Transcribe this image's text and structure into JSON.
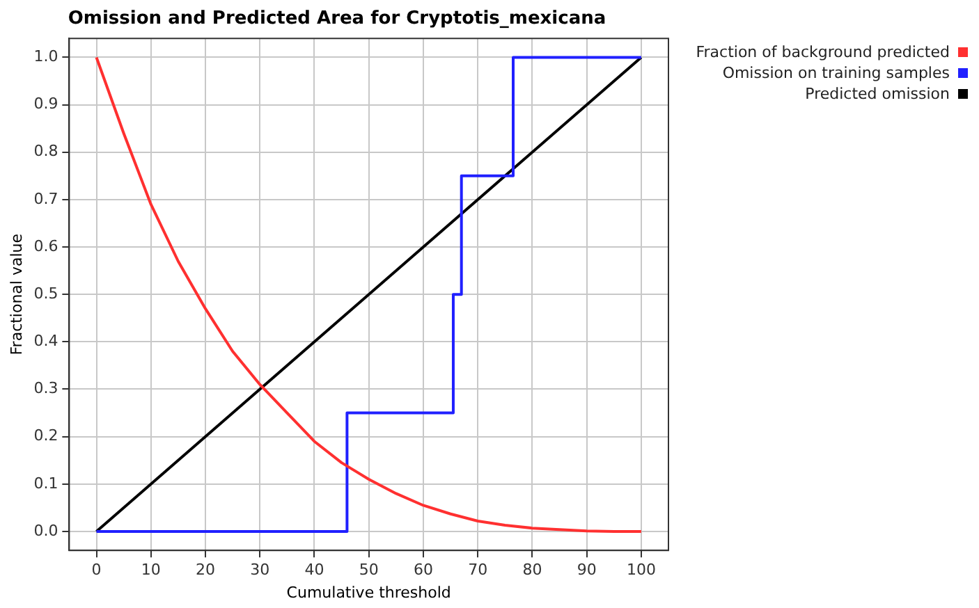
{
  "chart_data": {
    "type": "line",
    "title": "Omission and Predicted Area for Cryptotis_mexicana",
    "xlabel": "Cumulative threshold",
    "ylabel": "Fractional value",
    "xlim": [
      -5,
      105
    ],
    "ylim": [
      -0.04,
      1.04
    ],
    "xticks": [
      0,
      10,
      20,
      30,
      40,
      50,
      60,
      70,
      80,
      90,
      100
    ],
    "yticks": [
      {
        "value": 0,
        "label": "0.0"
      },
      {
        "value": 0.1,
        "label": "0.1"
      },
      {
        "value": 0.2,
        "label": "0.2"
      },
      {
        "value": 0.3,
        "label": "0.3"
      },
      {
        "value": 0.4,
        "label": "0.4"
      },
      {
        "value": 0.5,
        "label": "0.5"
      },
      {
        "value": 0.6,
        "label": "0.6"
      },
      {
        "value": 0.7,
        "label": "0.7"
      },
      {
        "value": 0.8,
        "label": "0.8"
      },
      {
        "value": 0.9,
        "label": "0.9"
      },
      {
        "value": 1,
        "label": "1.0"
      }
    ],
    "grid": true,
    "legend": "top right",
    "marker": "none",
    "line_style": "solid",
    "series": [
      {
        "name": "Fraction of background predicted",
        "color": "#ff3030",
        "x": [
          0,
          5,
          10,
          15,
          20,
          25,
          30,
          35,
          40,
          45,
          50,
          55,
          60,
          65,
          70,
          75,
          80,
          85,
          90,
          95,
          100
        ],
        "values": [
          1.0,
          0.84,
          0.69,
          0.57,
          0.47,
          0.38,
          0.31,
          0.25,
          0.19,
          0.145,
          0.11,
          0.08,
          0.055,
          0.037,
          0.022,
          0.013,
          0.007,
          0.004,
          0.001,
          0,
          0
        ]
      },
      {
        "name": "Omission on training samples",
        "color": "#2020ff",
        "x": [
          0,
          46,
          46,
          65.5,
          65.5,
          67,
          67,
          76.5,
          76.5,
          100
        ],
        "values": [
          0,
          0,
          0.25,
          0.25,
          0.5,
          0.5,
          0.75,
          0.75,
          1,
          1
        ]
      },
      {
        "name": "Predicted omission",
        "color": "#000000",
        "x": [
          0,
          100
        ],
        "values": [
          0,
          1
        ]
      }
    ]
  }
}
